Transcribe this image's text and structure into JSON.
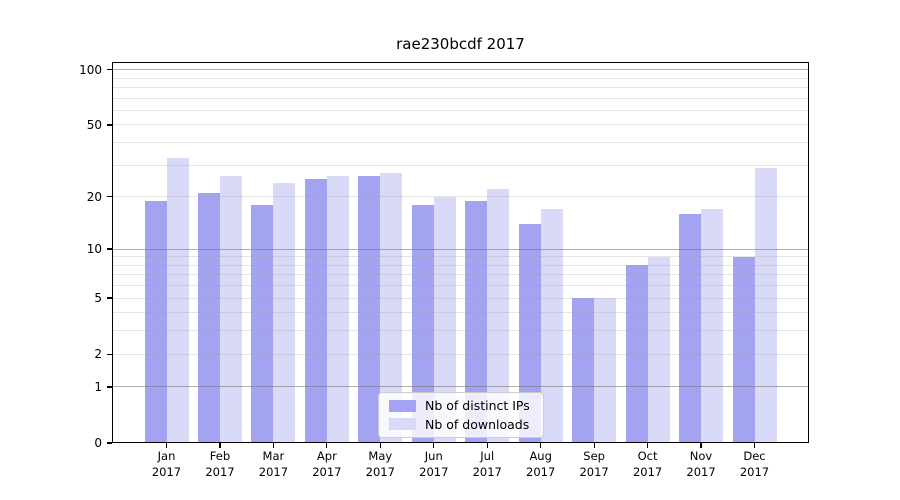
{
  "chart_data": {
    "type": "bar",
    "title": "rae230bcdf 2017",
    "year_label": "2017",
    "categories": [
      "Jan",
      "Feb",
      "Mar",
      "Apr",
      "May",
      "Jun",
      "Jul",
      "Aug",
      "Sep",
      "Oct",
      "Nov",
      "Dec"
    ],
    "series": [
      {
        "name": "Nb of distinct IPs",
        "color": "#a3a3f2",
        "values": [
          19,
          21,
          18,
          25,
          26,
          18,
          19,
          14,
          5,
          8,
          16,
          9
        ]
      },
      {
        "name": "Nb of downloads",
        "color": "#d9d9f8",
        "values": [
          33,
          26,
          24,
          26,
          27,
          20,
          22,
          17,
          5,
          9,
          17,
          29
        ]
      }
    ],
    "y_axis": {
      "scale": "log1p",
      "min": 0,
      "max": 110,
      "tick_values": [
        0,
        1,
        2,
        5,
        10,
        20,
        50,
        100
      ],
      "tick_labels": [
        "0",
        "1",
        "2",
        "5",
        "10",
        "20",
        "50",
        "100"
      ],
      "major_gridlines": [
        1,
        10,
        100
      ],
      "minor_gridlines": [
        2,
        3,
        4,
        5,
        6,
        7,
        8,
        9,
        20,
        30,
        40,
        50,
        60,
        70,
        80,
        90
      ]
    },
    "legend": {
      "position": "lower center",
      "entries": [
        "Nb of distinct IPs",
        "Nb of downloads"
      ]
    },
    "colors": {
      "grid_major": "#b0b0b0",
      "grid_minor": "#e4e4e4",
      "axis": "#000000",
      "background": "#ffffff"
    }
  }
}
